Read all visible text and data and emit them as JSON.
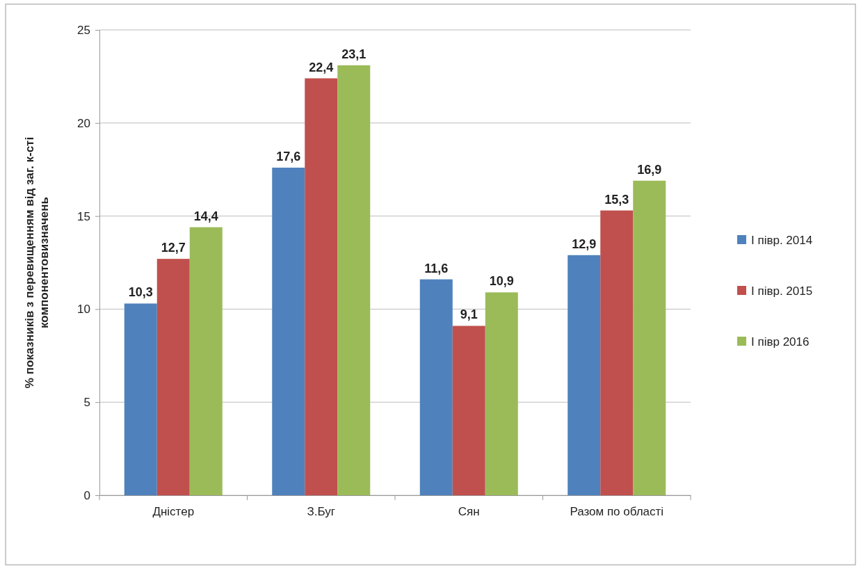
{
  "chart_data": {
    "type": "bar",
    "categories": [
      "Дністер",
      "З.Буг",
      "Сян",
      "Разом по області"
    ],
    "ylabel": "% показників з перевищенням від заг. к-сті\nкомпонентовизначень",
    "series": [
      {
        "name": "І півр. 2014",
        "color": "#4f81bd",
        "values": [
          10.3,
          17.6,
          11.6,
          12.9
        ],
        "value_labels": [
          "10,3",
          "17,6",
          "11,6",
          "12,9"
        ]
      },
      {
        "name": "І півр. 2015",
        "color": "#c0504d",
        "values": [
          12.7,
          22.4,
          9.1,
          15.3
        ],
        "value_labels": [
          "12,7",
          "22,4",
          "9,1",
          "15,3"
        ]
      },
      {
        "name": "І півр 2016",
        "color": "#9bbb59",
        "values": [
          14.4,
          23.1,
          10.9,
          16.9
        ],
        "value_labels": [
          "14,4",
          "23,1",
          "10,9",
          "16,9"
        ]
      }
    ],
    "ylim": [
      0,
      25
    ],
    "yticks": [
      0,
      5,
      10,
      15,
      20,
      25
    ],
    "grid": "y",
    "legend": "right"
  }
}
